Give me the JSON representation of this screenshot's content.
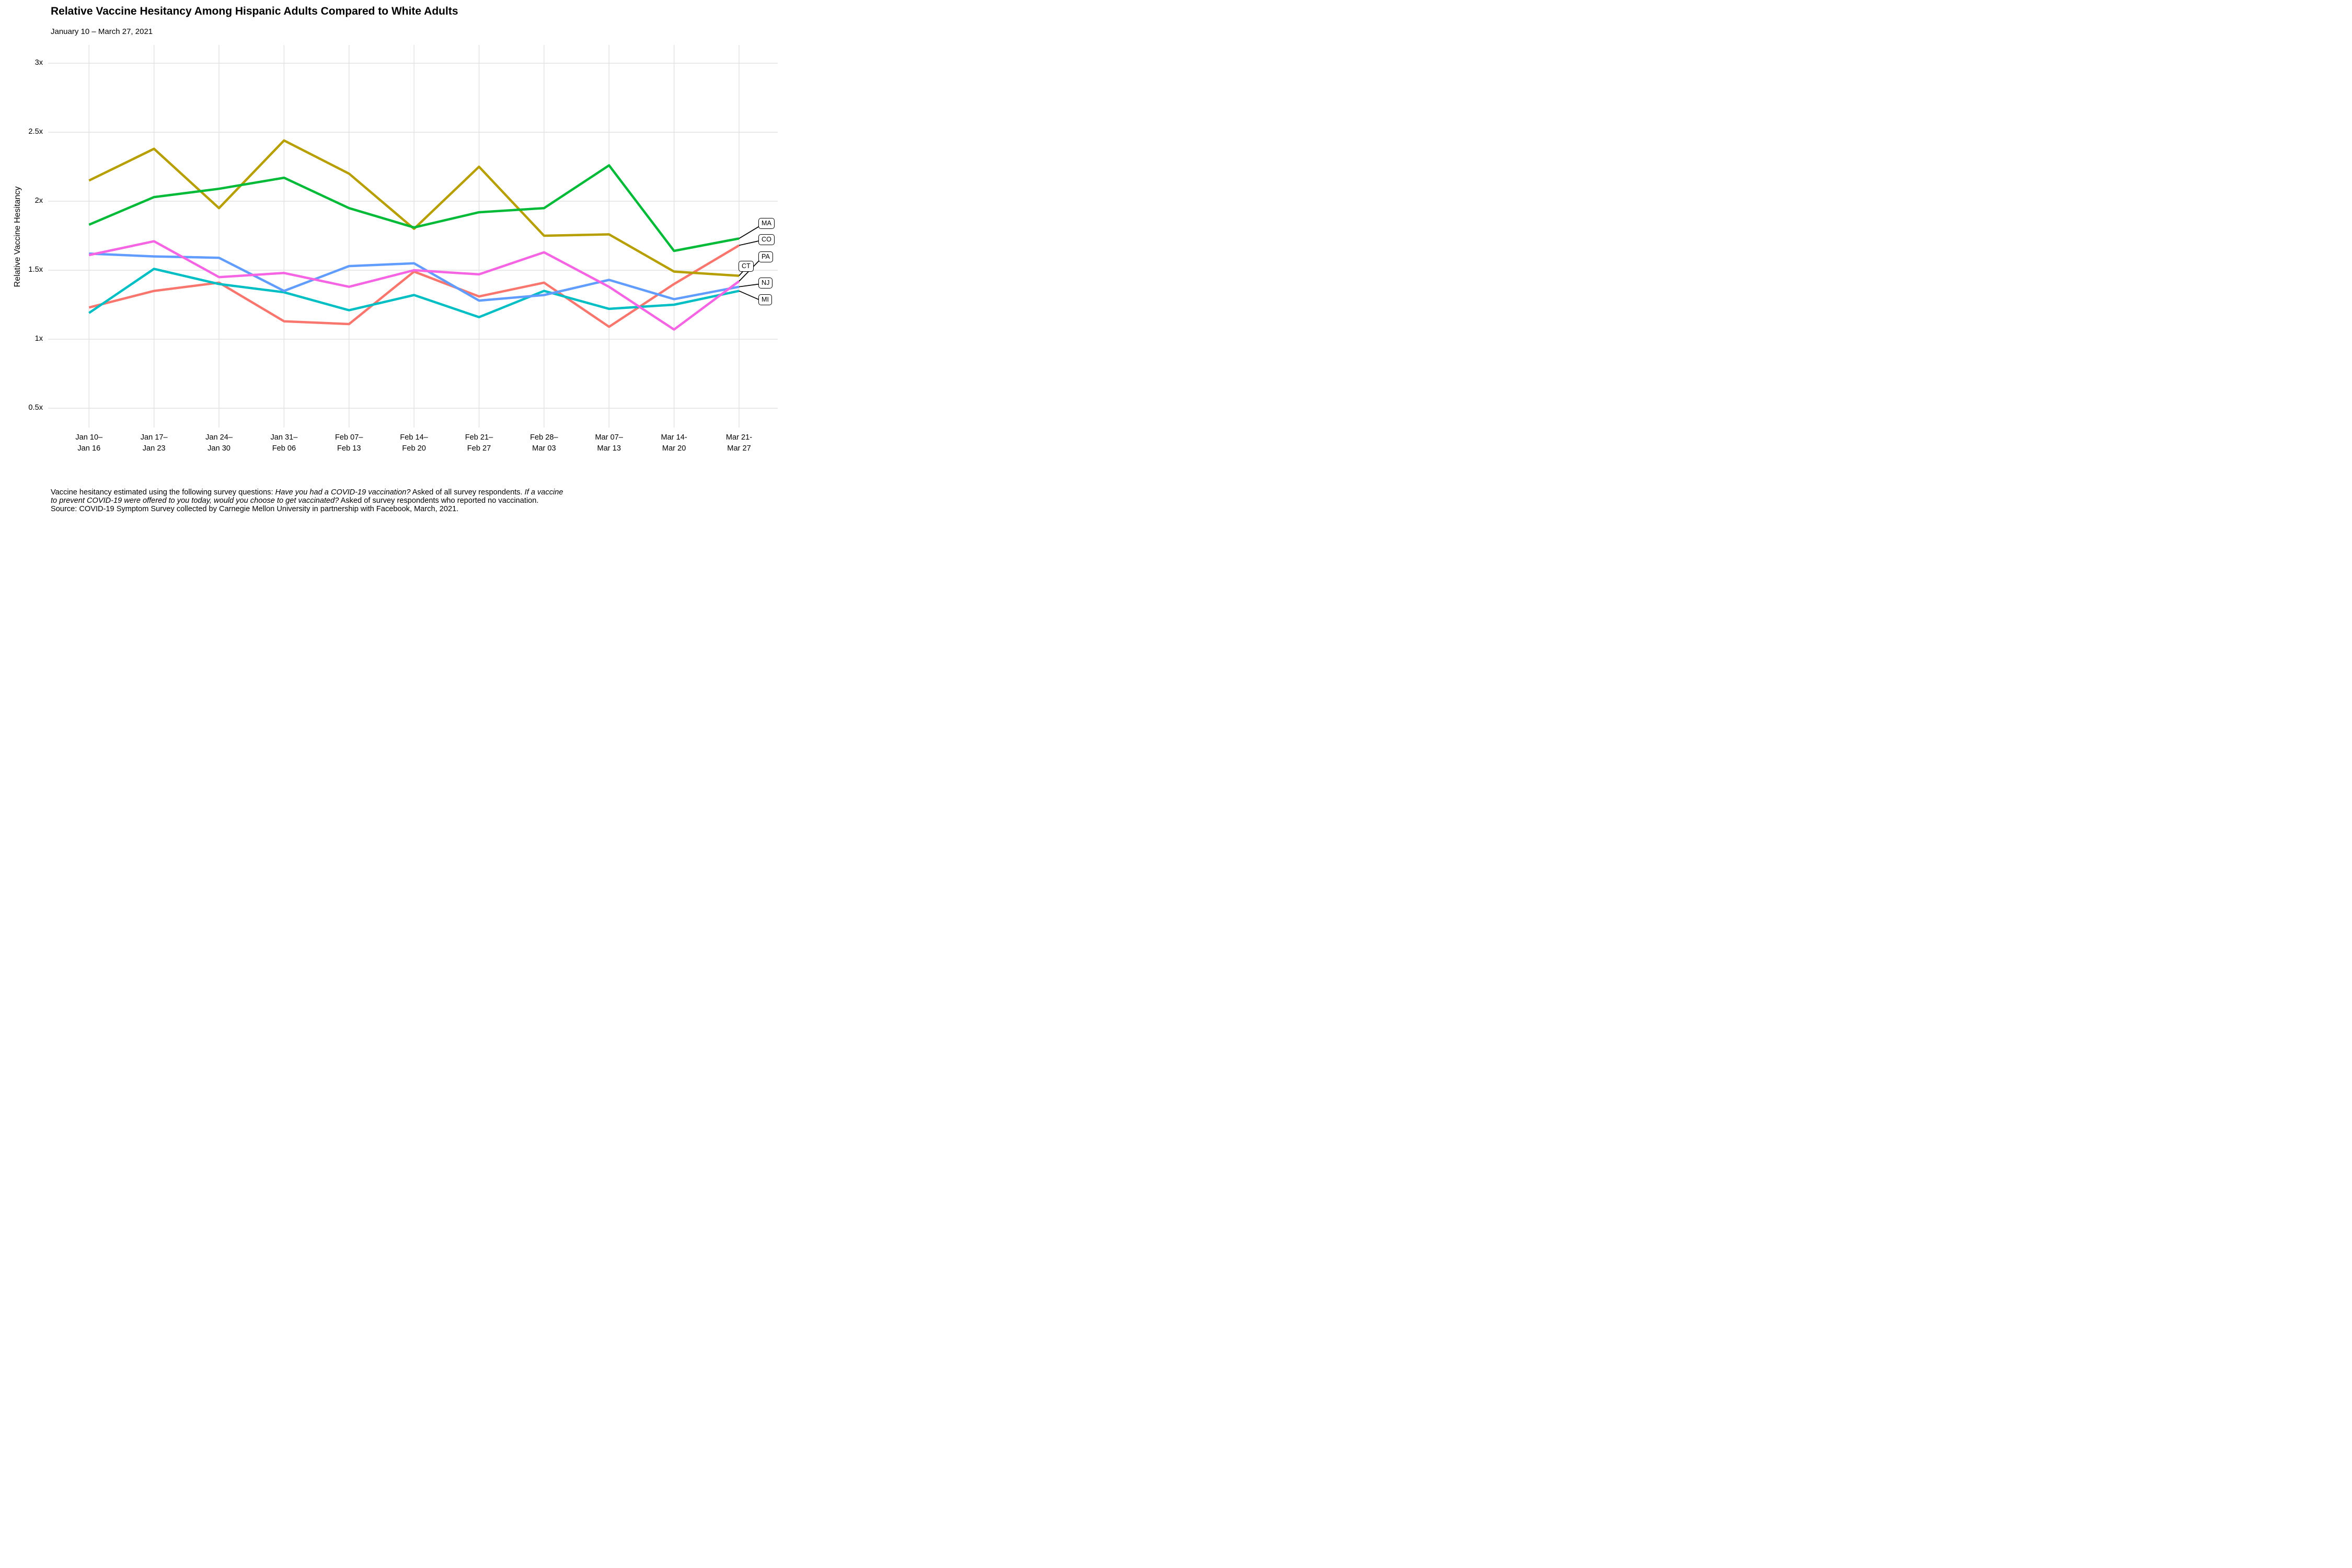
{
  "header": {
    "title": "Relative Vaccine Hesitancy Among Hispanic Adults Compared to White Adults",
    "subtitle": "January 10 – March 27, 2021"
  },
  "y_axis": {
    "title": "Relative Vaccine Hesitancy"
  },
  "caption": {
    "lines": [
      [
        {
          "text": "Vaccine hesitancy estimated using the following survey questions: ",
          "italic": false
        },
        {
          "text": "Have you had a COVID-19 vaccination?",
          "italic": true
        },
        {
          "text": " Asked of all survey respondents. ",
          "italic": false
        },
        {
          "text": "If a vaccine",
          "italic": true
        }
      ],
      [
        {
          "text": "to prevent COVID-19 were offered to you today, would you choose to get vaccinated?",
          "italic": true
        },
        {
          "text": " Asked of survey respondents who reported no vaccination.",
          "italic": false
        }
      ],
      [
        {
          "text": "Source: COVID-19 Symptom Survey collected by Carnegie Mellon University in partnership with Facebook, March, 2021.",
          "italic": false
        }
      ]
    ]
  },
  "chart_data": {
    "type": "line",
    "title": "Relative Vaccine Hesitancy Among Hispanic Adults Compared to White Adults",
    "subtitle": "January 10 – March 27, 2021",
    "xlabel": "",
    "ylabel": "Relative Vaccine Hesitancy",
    "ylim": [
      0.5,
      3.0
    ],
    "grid": true,
    "legend_position": "boxed state labels at right edge of lines",
    "y_ticks": [
      {
        "label": "3x",
        "value": 3.0
      },
      {
        "label": "2.5x",
        "value": 2.5
      },
      {
        "label": "2x",
        "value": 2.0
      },
      {
        "label": "1.5x",
        "value": 1.5
      },
      {
        "label": "1x",
        "value": 1.0
      },
      {
        "label": "0.5x",
        "value": 0.5
      }
    ],
    "categories": [
      "Jan 10–Jan 16",
      "Jan 17–Jan 23",
      "Jan 24–Jan 30",
      "Jan 31–Feb 06",
      "Feb 07–Feb 13",
      "Feb 14–Feb 20",
      "Feb 21–Feb 27",
      "Feb 28–Mar 03",
      "Mar 07–Mar 13",
      "Mar 14-Mar 20",
      "Mar 21-Mar 27"
    ],
    "x_tick_lines": [
      [
        "Jan 10–",
        "Jan 16"
      ],
      [
        "Jan 17–",
        "Jan 23"
      ],
      [
        "Jan 24–",
        "Jan 30"
      ],
      [
        "Jan 31–",
        "Feb 06"
      ],
      [
        "Feb 07–",
        "Feb 13"
      ],
      [
        "Feb 14–",
        "Feb 20"
      ],
      [
        "Feb 21–",
        "Feb 27"
      ],
      [
        "Feb 28–",
        "Mar 03"
      ],
      [
        "Mar 07–",
        "Mar 13"
      ],
      [
        "Mar 14-",
        "Mar 20"
      ],
      [
        "Mar 21-",
        "Mar 27"
      ]
    ],
    "series": [
      {
        "name": "CO",
        "color": "#F8766D",
        "values": [
          1.23,
          1.35,
          1.41,
          1.13,
          1.11,
          1.49,
          1.31,
          1.41,
          1.09,
          1.4,
          1.68
        ]
      },
      {
        "name": "CT",
        "color": "#B79F00",
        "values": [
          2.15,
          2.38,
          1.95,
          2.44,
          2.2,
          1.8,
          2.25,
          1.75,
          1.76,
          1.49,
          1.46
        ]
      },
      {
        "name": "MA",
        "color": "#00BA38",
        "values": [
          1.83,
          2.03,
          2.09,
          2.17,
          1.95,
          1.81,
          1.92,
          1.95,
          2.26,
          1.64,
          1.73
        ]
      },
      {
        "name": "MI",
        "color": "#00BFC4",
        "values": [
          1.19,
          1.51,
          1.4,
          1.34,
          1.21,
          1.32,
          1.16,
          1.35,
          1.22,
          1.25,
          1.35
        ]
      },
      {
        "name": "NJ",
        "color": "#619CFF",
        "values": [
          1.62,
          1.6,
          1.59,
          1.35,
          1.53,
          1.55,
          1.28,
          1.32,
          1.43,
          1.29,
          1.38
        ]
      },
      {
        "name": "PA",
        "color": "#F564E3",
        "values": [
          1.61,
          1.71,
          1.45,
          1.48,
          1.38,
          1.5,
          1.47,
          1.63,
          1.38,
          1.07,
          1.42
        ]
      }
    ]
  }
}
